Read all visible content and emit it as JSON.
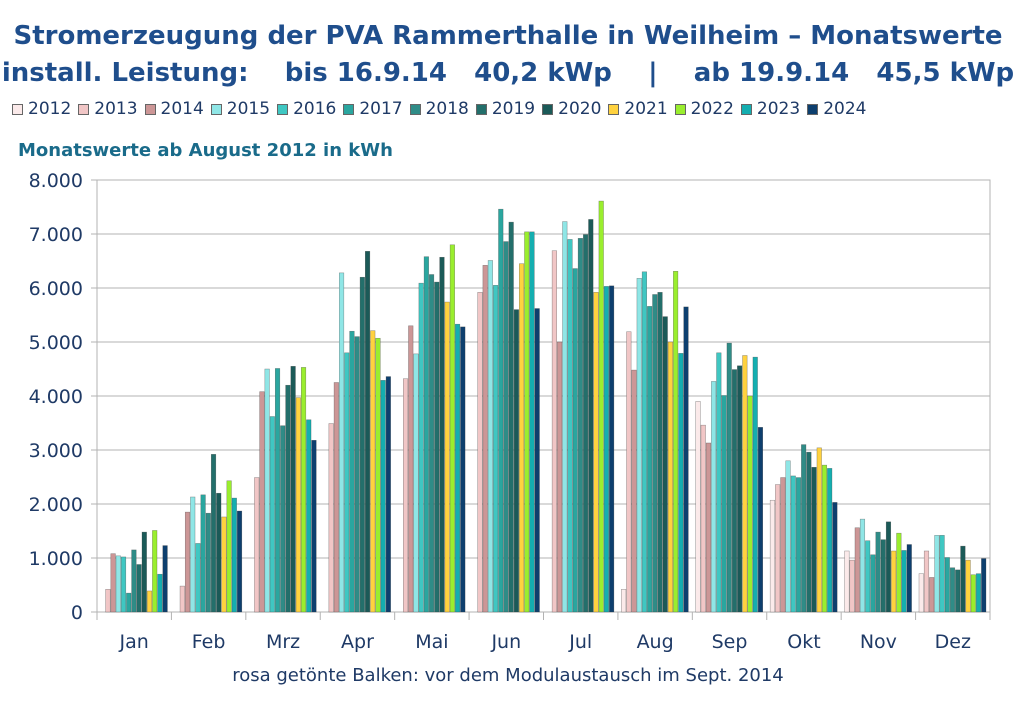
{
  "title_line1": "Stromerzeugung der PVA Rammerthalle in Weilheim – Monatswerte",
  "title_line2": "install. Leistung:    bis 16.9.14   40,2 kWp    |    ab 19.9.14   45,5 kWp",
  "subtitle": "Monatswerte ab August 2012 in kWh",
  "footnote": "rosa getönte Balken: vor dem Modulaustausch im Sept. 2014",
  "chart_data": {
    "type": "bar",
    "title": "Stromerzeugung der PVA Rammerthalle in Weilheim – Monatswerte",
    "ylabel": "kWh",
    "xlabel": "",
    "ylim": [
      0,
      8000
    ],
    "yticks": [
      0,
      1000,
      2000,
      3000,
      4000,
      5000,
      6000,
      7000,
      8000
    ],
    "ytick_labels": [
      "0",
      "1.000",
      "2.000",
      "3.000",
      "4.000",
      "5.000",
      "6.000",
      "7.000",
      "8.000"
    ],
    "categories": [
      "Jan",
      "Feb",
      "Mrz",
      "Apr",
      "Mai",
      "Jun",
      "Jul",
      "Aug",
      "Sep",
      "Okt",
      "Nov",
      "Dez"
    ],
    "legend_position": "top",
    "grid": true,
    "series": [
      {
        "name": "2012",
        "color": "#fbeaea",
        "values": [
          null,
          null,
          null,
          null,
          null,
          null,
          null,
          420,
          3900,
          2070,
          1130,
          710
        ]
      },
      {
        "name": "2013",
        "color": "#f1c6c6",
        "values": [
          420,
          480,
          2490,
          3490,
          4320,
          5920,
          6690,
          5190,
          3460,
          2360,
          960,
          1130
        ]
      },
      {
        "name": "2014",
        "color": "#cc9696",
        "values": [
          1080,
          1850,
          4080,
          4250,
          5300,
          6420,
          5000,
          4480,
          3130,
          2490,
          1560,
          640
        ]
      },
      {
        "name": "2015",
        "color": "#8fe6e6",
        "values": [
          1040,
          2130,
          4500,
          6280,
          4780,
          6510,
          7230,
          6180,
          4270,
          2800,
          1720,
          1420
        ]
      },
      {
        "name": "2016",
        "color": "#3fc7c2",
        "values": [
          1020,
          1270,
          3620,
          4800,
          6090,
          6050,
          6900,
          6300,
          4800,
          2520,
          1320,
          1420
        ]
      },
      {
        "name": "2017",
        "color": "#2aa69f",
        "values": [
          350,
          2170,
          4510,
          5200,
          6580,
          7460,
          6360,
          5660,
          4010,
          2490,
          1060,
          1010
        ]
      },
      {
        "name": "2018",
        "color": "#2f8c87",
        "values": [
          1150,
          1830,
          3450,
          5100,
          6250,
          6860,
          6920,
          5880,
          4980,
          3100,
          1480,
          820
        ]
      },
      {
        "name": "2019",
        "color": "#236f6b",
        "values": [
          880,
          2920,
          4200,
          6200,
          6110,
          7220,
          6990,
          5920,
          4490,
          2960,
          1340,
          780
        ]
      },
      {
        "name": "2020",
        "color": "#1b5a58",
        "values": [
          1480,
          2200,
          4550,
          6680,
          6570,
          5600,
          7270,
          5470,
          4560,
          2680,
          1670,
          1220
        ]
      },
      {
        "name": "2021",
        "color": "#ffd23f",
        "values": [
          390,
          1760,
          3970,
          5210,
          5740,
          6450,
          5920,
          5000,
          4750,
          3040,
          1130,
          960
        ]
      },
      {
        "name": "2022",
        "color": "#9aee2e",
        "values": [
          1510,
          2430,
          4530,
          5070,
          6800,
          7040,
          7610,
          6310,
          4000,
          2720,
          1460,
          690
        ]
      },
      {
        "name": "2023",
        "color": "#14aeb0",
        "values": [
          700,
          2110,
          3560,
          4290,
          5330,
          7040,
          6030,
          4790,
          4720,
          2660,
          1140,
          710
        ]
      },
      {
        "name": "2024",
        "color": "#0d3f6e",
        "values": [
          1230,
          1870,
          3180,
          4360,
          5280,
          5620,
          6040,
          5650,
          3420,
          2030,
          1250,
          990
        ]
      }
    ]
  }
}
